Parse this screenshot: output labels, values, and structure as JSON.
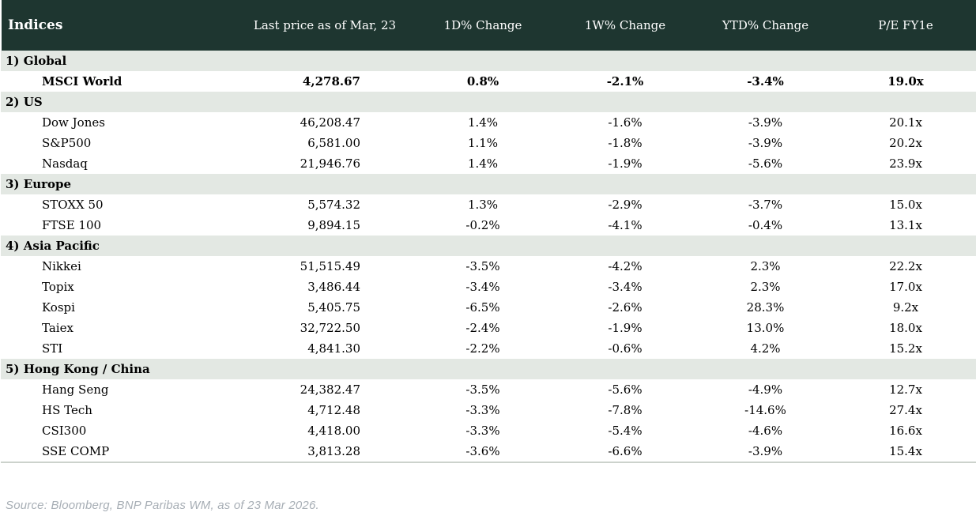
{
  "chart_data": {
    "type": "table",
    "title": "Indices",
    "columns": [
      "Indices",
      "Last price as of Mar, 23",
      "1D% Change",
      "1W% Change",
      "YTD% Change",
      "P/E FY1e"
    ],
    "sections": [
      {
        "label": "1) Global",
        "rows": [
          {
            "name": "MSCI World",
            "price": "4,278.67",
            "d1": "0.8%",
            "w1": "-2.1%",
            "ytd": "-3.4%",
            "pe": "19.0x"
          }
        ]
      },
      {
        "label": "2) US",
        "rows": [
          {
            "name": "Dow Jones",
            "price": "46,208.47",
            "d1": "1.4%",
            "w1": "-1.6%",
            "ytd": "-3.9%",
            "pe": "20.1x"
          },
          {
            "name": "S&P500",
            "price": "6,581.00",
            "d1": "1.1%",
            "w1": "-1.8%",
            "ytd": "-3.9%",
            "pe": "20.2x"
          },
          {
            "name": "Nasdaq",
            "price": "21,946.76",
            "d1": "1.4%",
            "w1": "-1.9%",
            "ytd": "-5.6%",
            "pe": "23.9x"
          }
        ]
      },
      {
        "label": "3) Europe",
        "rows": [
          {
            "name": "STOXX 50",
            "price": "5,574.32",
            "d1": "1.3%",
            "w1": "-2.9%",
            "ytd": "-3.7%",
            "pe": "15.0x"
          },
          {
            "name": "FTSE 100",
            "price": "9,894.15",
            "d1": "-0.2%",
            "w1": "-4.1%",
            "ytd": "-0.4%",
            "pe": "13.1x"
          }
        ]
      },
      {
        "label": "4) Asia Pacific",
        "rows": [
          {
            "name": "Nikkei",
            "price": "51,515.49",
            "d1": "-3.5%",
            "w1": "-4.2%",
            "ytd": "2.3%",
            "pe": "22.2x"
          },
          {
            "name": "Topix",
            "price": "3,486.44",
            "d1": "-3.4%",
            "w1": "-3.4%",
            "ytd": "2.3%",
            "pe": "17.0x"
          },
          {
            "name": "Kospi",
            "price": "5,405.75",
            "d1": "-6.5%",
            "w1": "-2.6%",
            "ytd": "28.3%",
            "pe": "9.2x"
          },
          {
            "name": "Taiex",
            "price": "32,722.50",
            "d1": "-2.4%",
            "w1": "-1.9%",
            "ytd": "13.0%",
            "pe": "18.0x"
          },
          {
            "name": "STI",
            "price": "4,841.30",
            "d1": "-2.2%",
            "w1": "-0.6%",
            "ytd": "4.2%",
            "pe": "15.2x"
          }
        ]
      },
      {
        "label": "5) Hong Kong / China",
        "rows": [
          {
            "name": "Hang Seng",
            "price": "24,382.47",
            "d1": "-3.5%",
            "w1": "-5.6%",
            "ytd": "-4.9%",
            "pe": "12.7x"
          },
          {
            "name": "HS Tech",
            "price": "4,712.48",
            "d1": "-3.3%",
            "w1": "-7.8%",
            "ytd": "-14.6%",
            "pe": "27.4x"
          },
          {
            "name": "CSI300",
            "price": "4,418.00",
            "d1": "-3.3%",
            "w1": "-5.4%",
            "ytd": "-4.6%",
            "pe": "16.6x"
          },
          {
            "name": "SSE COMP",
            "price": "3,813.28",
            "d1": "-3.6%",
            "w1": "-6.6%",
            "ytd": "-3.9%",
            "pe": "15.4x"
          }
        ]
      }
    ]
  },
  "footer": {
    "source": "Source: Bloomberg, BNP Paribas WM, as of 23 Mar 2026."
  },
  "colors": {
    "header_bg": "#1e3630",
    "header_text": "#ffffff",
    "section_bg": "#e3e8e3",
    "positive": "#00913d",
    "negative": "#c00000",
    "footer_text": "#a7aeb5",
    "table_bottom_border": "#ccd2cc"
  }
}
